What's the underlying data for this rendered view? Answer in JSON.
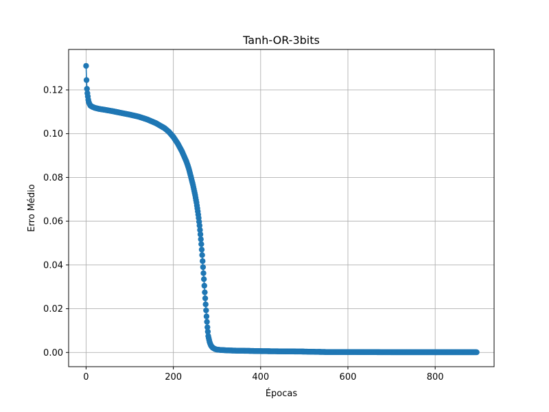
{
  "chart_data": {
    "type": "line",
    "title": "Tanh-OR-3bits",
    "xlabel": "Épocas",
    "ylabel": "Erro Médio",
    "xlim": [
      -40,
      935
    ],
    "ylim": [
      -0.0065,
      0.1385
    ],
    "xticks": [
      0,
      200,
      400,
      600,
      800
    ],
    "xtick_labels": [
      "0",
      "200",
      "400",
      "600",
      "800"
    ],
    "yticks": [
      0.0,
      0.02,
      0.04,
      0.06,
      0.08,
      0.1,
      0.12
    ],
    "ytick_labels": [
      "0.00",
      "0.02",
      "0.04",
      "0.06",
      "0.08",
      "0.10",
      "0.12"
    ],
    "grid": true,
    "marker": "circle",
    "color": "#1f77b4",
    "series": [
      {
        "x": [
          0,
          1,
          2,
          3,
          4,
          5,
          6,
          8,
          10,
          15,
          20,
          30,
          40,
          60,
          80,
          100,
          120,
          140,
          160,
          180,
          190,
          200,
          210,
          220,
          230,
          235,
          240,
          245,
          250,
          253,
          256,
          258,
          260,
          262,
          264,
          266,
          268,
          270,
          272,
          274,
          276,
          278,
          280,
          283,
          286,
          290,
          295,
          300,
          310,
          320,
          330,
          350,
          380,
          400,
          450,
          500,
          520,
          550,
          600,
          700,
          800,
          895
        ],
        "y": [
          0.131,
          0.1245,
          0.1205,
          0.1185,
          0.117,
          0.1155,
          0.1145,
          0.1135,
          0.1128,
          0.1122,
          0.1118,
          0.1113,
          0.111,
          0.1103,
          0.1095,
          0.1087,
          0.1078,
          0.1065,
          0.1048,
          0.1025,
          0.1008,
          0.0985,
          0.0955,
          0.0918,
          0.0872,
          0.0843,
          0.0805,
          0.0765,
          0.0718,
          0.0685,
          0.0645,
          0.0615,
          0.058,
          0.054,
          0.0495,
          0.0445,
          0.039,
          0.0335,
          0.0275,
          0.022,
          0.0165,
          0.0115,
          0.0075,
          0.0048,
          0.0032,
          0.0022,
          0.0016,
          0.0013,
          0.0011,
          0.001,
          0.0009,
          0.0008,
          0.0007,
          0.0006,
          0.0005,
          0.0004,
          0.0003,
          0.0002,
          0.0002,
          0.0001,
          0.0001,
          0.0001
        ]
      }
    ]
  }
}
